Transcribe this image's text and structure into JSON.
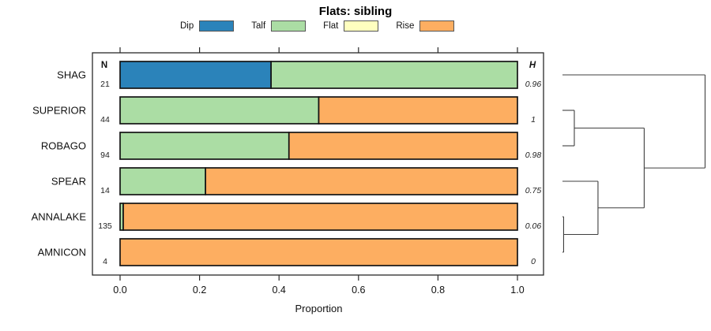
{
  "title": "Flats: sibling",
  "legend": {
    "items": [
      {
        "label": "Dip",
        "color": "#2B83BA"
      },
      {
        "label": "Talf",
        "color": "#ABDDA4"
      },
      {
        "label": "Flat",
        "color": "#FFFFBF"
      },
      {
        "label": "Rise",
        "color": "#FDAE61"
      }
    ]
  },
  "columns": {
    "n_header": "N",
    "h_header": "H"
  },
  "x_axis": {
    "label": "Proportion",
    "tick_labels": [
      "0.0",
      "0.2",
      "0.4",
      "0.6",
      "0.8",
      "1.0"
    ],
    "tick_values": [
      0,
      0.2,
      0.4,
      0.6,
      0.8,
      1.0
    ]
  },
  "chart_data": {
    "type": "bar",
    "orientation": "horizontal",
    "stacked": true,
    "title": "Flats: sibling",
    "xlabel": "Proportion",
    "xlim": [
      0,
      1
    ],
    "legend_position": "top",
    "categories": [
      "SHAG",
      "SUPERIOR",
      "ROBAGO",
      "SPEAR",
      "ANNALAKE",
      "AMNICON"
    ],
    "n": [
      "21",
      "44",
      "94",
      "14",
      "135",
      "4"
    ],
    "H": [
      "0.96",
      "1",
      "0.98",
      "0.75",
      "0.06",
      "0"
    ],
    "series": [
      {
        "name": "Dip",
        "color": "#2B83BA",
        "values": [
          0.38,
          0,
          0,
          0,
          0,
          0
        ]
      },
      {
        "name": "Talf",
        "color": "#ABDDA4",
        "values": [
          0.62,
          0.5,
          0.425,
          0.215,
          0.008,
          0
        ]
      },
      {
        "name": "Flat",
        "color": "#FFFFBF",
        "values": [
          0,
          0,
          0,
          0,
          0,
          0
        ]
      },
      {
        "name": "Rise",
        "color": "#FDAE61",
        "values": [
          0,
          0.5,
          0.575,
          0.785,
          0.992,
          1.0
        ]
      }
    ]
  },
  "dendrogram": {
    "orientation": "right",
    "merges": [
      {
        "id": "m1",
        "children": [
          "ANNALAKE",
          "AMNICON"
        ],
        "height": 0.008
      },
      {
        "id": "m2",
        "children": [
          "SUPERIOR",
          "ROBAGO"
        ],
        "height": 0.083
      },
      {
        "id": "m3",
        "children": [
          "SPEAR",
          "m1"
        ],
        "height": 0.249
      },
      {
        "id": "m4",
        "children": [
          "m2",
          "m3"
        ],
        "height": 0.573
      },
      {
        "id": "root",
        "children": [
          "SHAG",
          "m4"
        ],
        "height": 1.0
      }
    ]
  }
}
